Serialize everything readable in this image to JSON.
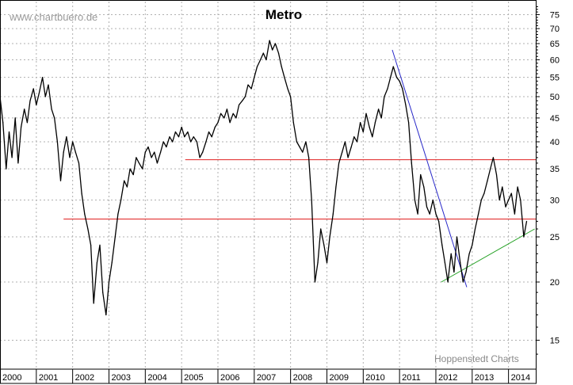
{
  "chart_data": {
    "type": "line",
    "title": "Metro",
    "watermark": "www.chartbuero.de",
    "credit": "Hoppenstedt Charts",
    "y_scale": "log",
    "ylim": [
      13,
      80
    ],
    "xlim": [
      2000.0,
      2014.75
    ],
    "y_ticks": [
      15,
      20,
      25,
      30,
      35,
      40,
      45,
      50,
      55,
      60,
      65,
      70,
      75
    ],
    "x_ticks": [
      {
        "label": "2000",
        "value": 2000
      },
      {
        "label": "2001",
        "value": 2001
      },
      {
        "label": "2002",
        "value": 2002
      },
      {
        "label": "2003",
        "value": 2003
      },
      {
        "label": "2004",
        "value": 2004
      },
      {
        "label": "2005",
        "value": 2005
      },
      {
        "label": "2006",
        "value": 2006
      },
      {
        "label": "2007",
        "value": 2007
      },
      {
        "label": "2008",
        "value": 2008
      },
      {
        "label": "2009",
        "value": 2009
      },
      {
        "label": "2010",
        "value": 2010
      },
      {
        "label": "2011",
        "value": 2011
      },
      {
        "label": "2012",
        "value": 2012
      },
      {
        "label": "2013",
        "value": 2013
      },
      {
        "label": "2014",
        "value": 2014
      }
    ],
    "grid": true,
    "colors": {
      "price": "#000000",
      "support_resistance": "#e02020",
      "downtrend": "#2828c8",
      "uptrend": "#22a022",
      "grid": "#b0b0b0"
    },
    "series": [
      {
        "values": [
          [
            2000.0,
            50
          ],
          [
            2000.08,
            44
          ],
          [
            2000.17,
            35
          ],
          [
            2000.25,
            42
          ],
          [
            2000.33,
            37
          ],
          [
            2000.42,
            45
          ],
          [
            2000.5,
            36
          ],
          [
            2000.58,
            43
          ],
          [
            2000.67,
            47
          ],
          [
            2000.75,
            44
          ],
          [
            2000.83,
            49
          ],
          [
            2000.92,
            52
          ],
          [
            2001.0,
            48
          ],
          [
            2001.08,
            51
          ],
          [
            2001.17,
            55
          ],
          [
            2001.25,
            50
          ],
          [
            2001.33,
            53
          ],
          [
            2001.42,
            47
          ],
          [
            2001.5,
            45
          ],
          [
            2001.58,
            40
          ],
          [
            2001.67,
            33
          ],
          [
            2001.75,
            38
          ],
          [
            2001.83,
            41
          ],
          [
            2001.92,
            37
          ],
          [
            2002.0,
            40
          ],
          [
            2002.08,
            38
          ],
          [
            2002.17,
            36
          ],
          [
            2002.25,
            31
          ],
          [
            2002.33,
            28
          ],
          [
            2002.42,
            26
          ],
          [
            2002.5,
            24
          ],
          [
            2002.58,
            18
          ],
          [
            2002.67,
            22
          ],
          [
            2002.75,
            24
          ],
          [
            2002.83,
            19
          ],
          [
            2002.92,
            17
          ],
          [
            2003.0,
            20
          ],
          [
            2003.08,
            22
          ],
          [
            2003.17,
            25
          ],
          [
            2003.25,
            28
          ],
          [
            2003.33,
            30
          ],
          [
            2003.42,
            33
          ],
          [
            2003.5,
            32
          ],
          [
            2003.58,
            35
          ],
          [
            2003.67,
            34
          ],
          [
            2003.75,
            37
          ],
          [
            2003.83,
            36
          ],
          [
            2003.92,
            35
          ],
          [
            2004.0,
            38
          ],
          [
            2004.08,
            39
          ],
          [
            2004.17,
            37
          ],
          [
            2004.25,
            38
          ],
          [
            2004.33,
            36
          ],
          [
            2004.42,
            38
          ],
          [
            2004.5,
            40
          ],
          [
            2004.58,
            39
          ],
          [
            2004.67,
            41
          ],
          [
            2004.75,
            40
          ],
          [
            2004.83,
            42
          ],
          [
            2004.92,
            41
          ],
          [
            2005.0,
            43
          ],
          [
            2005.08,
            41
          ],
          [
            2005.17,
            42
          ],
          [
            2005.25,
            40
          ],
          [
            2005.33,
            41
          ],
          [
            2005.42,
            40
          ],
          [
            2005.5,
            37
          ],
          [
            2005.58,
            38
          ],
          [
            2005.67,
            40
          ],
          [
            2005.75,
            42
          ],
          [
            2005.83,
            41
          ],
          [
            2005.92,
            43
          ],
          [
            2006.0,
            44
          ],
          [
            2006.08,
            46
          ],
          [
            2006.17,
            45
          ],
          [
            2006.25,
            47
          ],
          [
            2006.33,
            44
          ],
          [
            2006.42,
            46
          ],
          [
            2006.5,
            45
          ],
          [
            2006.58,
            48
          ],
          [
            2006.67,
            49
          ],
          [
            2006.75,
            50
          ],
          [
            2006.83,
            53
          ],
          [
            2006.92,
            52
          ],
          [
            2007.0,
            55
          ],
          [
            2007.08,
            58
          ],
          [
            2007.17,
            60
          ],
          [
            2007.25,
            62
          ],
          [
            2007.33,
            60
          ],
          [
            2007.42,
            66
          ],
          [
            2007.5,
            63
          ],
          [
            2007.58,
            65
          ],
          [
            2007.67,
            62
          ],
          [
            2007.75,
            58
          ],
          [
            2007.83,
            55
          ],
          [
            2007.92,
            52
          ],
          [
            2008.0,
            50
          ],
          [
            2008.08,
            44
          ],
          [
            2008.17,
            40
          ],
          [
            2008.25,
            39
          ],
          [
            2008.33,
            38
          ],
          [
            2008.42,
            40
          ],
          [
            2008.5,
            37
          ],
          [
            2008.58,
            30
          ],
          [
            2008.67,
            20
          ],
          [
            2008.75,
            22
          ],
          [
            2008.83,
            26
          ],
          [
            2008.92,
            24
          ],
          [
            2009.0,
            22
          ],
          [
            2009.08,
            25
          ],
          [
            2009.17,
            28
          ],
          [
            2009.25,
            32
          ],
          [
            2009.33,
            36
          ],
          [
            2009.42,
            38
          ],
          [
            2009.5,
            40
          ],
          [
            2009.58,
            37
          ],
          [
            2009.67,
            39
          ],
          [
            2009.75,
            41
          ],
          [
            2009.83,
            40
          ],
          [
            2009.92,
            44
          ],
          [
            2010.0,
            42
          ],
          [
            2010.08,
            46
          ],
          [
            2010.17,
            43
          ],
          [
            2010.25,
            41
          ],
          [
            2010.33,
            44
          ],
          [
            2010.42,
            47
          ],
          [
            2010.5,
            45
          ],
          [
            2010.58,
            50
          ],
          [
            2010.67,
            52
          ],
          [
            2010.75,
            55
          ],
          [
            2010.83,
            58
          ],
          [
            2010.92,
            55
          ],
          [
            2011.0,
            54
          ],
          [
            2011.08,
            52
          ],
          [
            2011.17,
            48
          ],
          [
            2011.25,
            44
          ],
          [
            2011.33,
            36
          ],
          [
            2011.42,
            30
          ],
          [
            2011.5,
            28
          ],
          [
            2011.58,
            34
          ],
          [
            2011.67,
            32
          ],
          [
            2011.75,
            29
          ],
          [
            2011.83,
            28
          ],
          [
            2011.92,
            30
          ],
          [
            2012.0,
            28
          ],
          [
            2012.08,
            27
          ],
          [
            2012.17,
            24
          ],
          [
            2012.25,
            22
          ],
          [
            2012.33,
            20
          ],
          [
            2012.42,
            23
          ],
          [
            2012.5,
            21
          ],
          [
            2012.58,
            25
          ],
          [
            2012.67,
            22
          ],
          [
            2012.75,
            20
          ],
          [
            2012.83,
            21
          ],
          [
            2012.92,
            23
          ],
          [
            2013.0,
            24
          ],
          [
            2013.08,
            26
          ],
          [
            2013.17,
            28
          ],
          [
            2013.25,
            30
          ],
          [
            2013.33,
            31
          ],
          [
            2013.42,
            33
          ],
          [
            2013.5,
            35
          ],
          [
            2013.58,
            37
          ],
          [
            2013.67,
            34
          ],
          [
            2013.75,
            30
          ],
          [
            2013.83,
            32
          ],
          [
            2013.92,
            29
          ],
          [
            2014.0,
            30
          ],
          [
            2014.08,
            31
          ],
          [
            2014.17,
            28
          ],
          [
            2014.25,
            32
          ],
          [
            2014.33,
            30
          ],
          [
            2014.42,
            25
          ],
          [
            2014.5,
            27
          ]
        ]
      }
    ],
    "reference_lines": [
      {
        "kind": "horizontal",
        "y": 36.6,
        "x_from": 2005.1,
        "x_to": 2014.75,
        "color": "#e02020"
      },
      {
        "kind": "horizontal",
        "y": 27.3,
        "x_from": 2001.75,
        "x_to": 2014.75,
        "color": "#e02020"
      },
      {
        "kind": "trend",
        "from": [
          2010.8,
          63
        ],
        "to": [
          2012.85,
          19.5
        ],
        "color": "#2828c8"
      },
      {
        "kind": "trend",
        "from": [
          2012.15,
          20
        ],
        "to": [
          2014.72,
          26
        ],
        "color": "#22a022"
      }
    ]
  }
}
